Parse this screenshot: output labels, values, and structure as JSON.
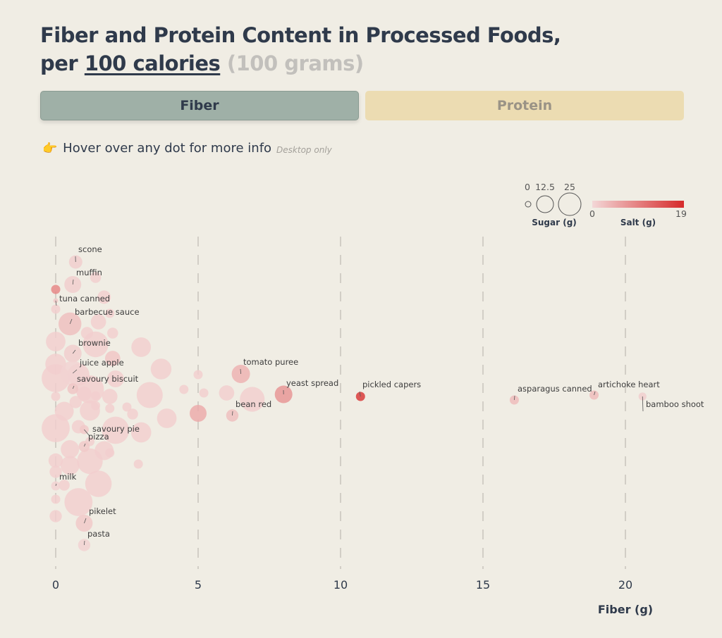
{
  "header": {
    "title_line1": "Fiber and Protein Content in Processed Foods,",
    "title_line2_prefix": "per ",
    "unit_active": "100 calories",
    "unit_inactive": "(100 grams)"
  },
  "tabs": [
    {
      "label": "Fiber",
      "active": true
    },
    {
      "label": "Protein",
      "active": false
    }
  ],
  "hint": {
    "emoji": "👉",
    "text": "Hover over any dot for more info",
    "note": "Desktop only"
  },
  "colors": {
    "background": "#f0ede4",
    "fiber_tab": "#9fb0a7",
    "protein_tab": "#ecdcb2",
    "salt_low": "#f3d7d7",
    "salt_high": "#d62a2a",
    "grid": "#bdbab3"
  },
  "legend": {
    "sugar_title": "Sugar (g)",
    "sugar_values": [
      "0",
      "12.5",
      "25"
    ],
    "salt_title": "Salt (g)",
    "salt_min": "0",
    "salt_max": "19"
  },
  "chart_data": {
    "type": "scatter",
    "xlabel": "Fiber (g)",
    "ylabel": "",
    "xlim": [
      0,
      20
    ],
    "xticks": [
      "0",
      "5",
      "10",
      "15",
      "20"
    ],
    "grid": "vertical dashed lines at ticks",
    "legend_position": "top-right",
    "labeled_points": [
      {
        "name": "scone",
        "x": 0.7,
        "sugar": 4,
        "salt": 1
      },
      {
        "name": "muffin",
        "x": 0.6,
        "sugar": 8,
        "salt": 1
      },
      {
        "name": "tuna canned",
        "x": 0.0,
        "sugar": 0,
        "salt": 1.5
      },
      {
        "name": "barbecue sauce",
        "x": 0.5,
        "sugar": 18,
        "salt": 2.5
      },
      {
        "name": "brownie",
        "x": 0.6,
        "sugar": 9,
        "salt": 1
      },
      {
        "name": "juice apple",
        "x": 0.6,
        "sugar": 22,
        "salt": 0.5
      },
      {
        "name": "savoury biscuit",
        "x": 0.6,
        "sugar": 2,
        "salt": 2
      },
      {
        "name": "tomato puree",
        "x": 6.5,
        "sugar": 10,
        "salt": 4
      },
      {
        "name": "yeast spread",
        "x": 8.0,
        "sugar": 9,
        "salt": 7
      },
      {
        "name": "pickled capers",
        "x": 10.7,
        "sugar": 1,
        "salt": 17
      },
      {
        "name": "bean red",
        "x": 6.2,
        "sugar": 3,
        "salt": 2.5
      },
      {
        "name": "asparagus canned",
        "x": 16.1,
        "sugar": 1,
        "salt": 3
      },
      {
        "name": "artichoke heart",
        "x": 18.9,
        "sugar": 1,
        "salt": 3
      },
      {
        "name": "bamboo shoot",
        "x": 20.6,
        "sugar": 0.5,
        "salt": 1
      },
      {
        "name": "savoury pie",
        "x": 1.0,
        "sugar": 1,
        "salt": 1.5
      },
      {
        "name": "pizza",
        "x": 1.0,
        "sugar": 2,
        "salt": 1.5
      },
      {
        "name": "milk",
        "x": 0.0,
        "sugar": 1,
        "salt": 0.5
      },
      {
        "name": "pikelet",
        "x": 1.0,
        "sugar": 8,
        "salt": 1.5
      },
      {
        "name": "pasta",
        "x": 1.0,
        "sugar": 3,
        "salt": 0.5
      }
    ],
    "other_points": [
      {
        "x": 1.4,
        "sugar": 1,
        "salt": 1
      },
      {
        "x": 0,
        "sugar": 1,
        "salt": 9
      },
      {
        "x": 1.4,
        "sugar": 2,
        "salt": 1
      },
      {
        "x": 1.7,
        "sugar": 4,
        "salt": 1
      },
      {
        "x": 1.9,
        "sugar": 1,
        "salt": 1
      },
      {
        "x": 0,
        "sugar": 1,
        "salt": 1
      },
      {
        "x": 1.1,
        "sugar": 3,
        "salt": 1
      },
      {
        "x": 1.5,
        "sugar": 6,
        "salt": 1
      },
      {
        "x": 2.0,
        "sugar": 2,
        "salt": 1
      },
      {
        "x": 0.0,
        "sugar": 12,
        "salt": 1
      },
      {
        "x": 1.4,
        "sugar": 24,
        "salt": 1
      },
      {
        "x": 3.0,
        "sugar": 12,
        "salt": 1
      },
      {
        "x": 2.0,
        "sugar": 6,
        "salt": 2
      },
      {
        "x": 0.0,
        "sugar": 14,
        "salt": 1
      },
      {
        "x": 3.7,
        "sugar": 14,
        "salt": 1
      },
      {
        "x": 0.0,
        "sugar": 30,
        "salt": 1
      },
      {
        "x": 1.2,
        "sugar": 30,
        "salt": 1
      },
      {
        "x": 2.1,
        "sugar": 8,
        "salt": 1
      },
      {
        "x": 5.0,
        "sugar": 1,
        "salt": 1
      },
      {
        "x": 0.8,
        "sugar": 16,
        "salt": 1
      },
      {
        "x": 1.0,
        "sugar": 5,
        "salt": 1
      },
      {
        "x": 4.5,
        "sugar": 1,
        "salt": 1
      },
      {
        "x": 5.2,
        "sugar": 1,
        "salt": 1
      },
      {
        "x": 3.3,
        "sugar": 25,
        "salt": 1
      },
      {
        "x": 0.0,
        "sugar": 1,
        "salt": 1
      },
      {
        "x": 0.7,
        "sugar": 3,
        "salt": 1
      },
      {
        "x": 1.4,
        "sugar": 1,
        "salt": 1
      },
      {
        "x": 1.9,
        "sugar": 6,
        "salt": 1
      },
      {
        "x": 0.3,
        "sugar": 11,
        "salt": 1
      },
      {
        "x": 1.2,
        "sugar": 13,
        "salt": 1
      },
      {
        "x": 2.5,
        "sugar": 1,
        "salt": 1
      },
      {
        "x": 1.9,
        "sugar": 1,
        "salt": 1
      },
      {
        "x": 6.0,
        "sugar": 6,
        "salt": 1
      },
      {
        "x": 6.9,
        "sugar": 22,
        "salt": 1
      },
      {
        "x": 2.7,
        "sugar": 2,
        "salt": 1
      },
      {
        "x": 3.9,
        "sugar": 12,
        "salt": 1
      },
      {
        "x": 5.0,
        "sugar": 8,
        "salt": 5
      },
      {
        "x": 0.0,
        "sugar": 30,
        "salt": 1
      },
      {
        "x": 0.8,
        "sugar": 4,
        "salt": 1
      },
      {
        "x": 2.1,
        "sugar": 28,
        "salt": 1
      },
      {
        "x": 3.0,
        "sugar": 13,
        "salt": 1
      },
      {
        "x": 1.2,
        "sugar": 1,
        "salt": 1
      },
      {
        "x": 0.5,
        "sugar": 10,
        "salt": 1
      },
      {
        "x": 1.7,
        "sugar": 11,
        "salt": 1
      },
      {
        "x": 1.9,
        "sugar": 1,
        "salt": 1
      },
      {
        "x": 2.9,
        "sugar": 1,
        "salt": 1
      },
      {
        "x": 0.0,
        "sugar": 5,
        "salt": 1
      },
      {
        "x": 0.5,
        "sugar": 11,
        "salt": 1
      },
      {
        "x": 1.2,
        "sugar": 24,
        "salt": 1
      },
      {
        "x": 0.0,
        "sugar": 3,
        "salt": 1
      },
      {
        "x": 1.5,
        "sugar": 26,
        "salt": 1
      },
      {
        "x": 0.3,
        "sugar": 2,
        "salt": 1
      },
      {
        "x": 0.0,
        "sugar": 1,
        "salt": 1
      },
      {
        "x": 0.8,
        "sugar": 30,
        "salt": 1
      },
      {
        "x": 0.0,
        "sugar": 3,
        "salt": 1
      }
    ]
  }
}
